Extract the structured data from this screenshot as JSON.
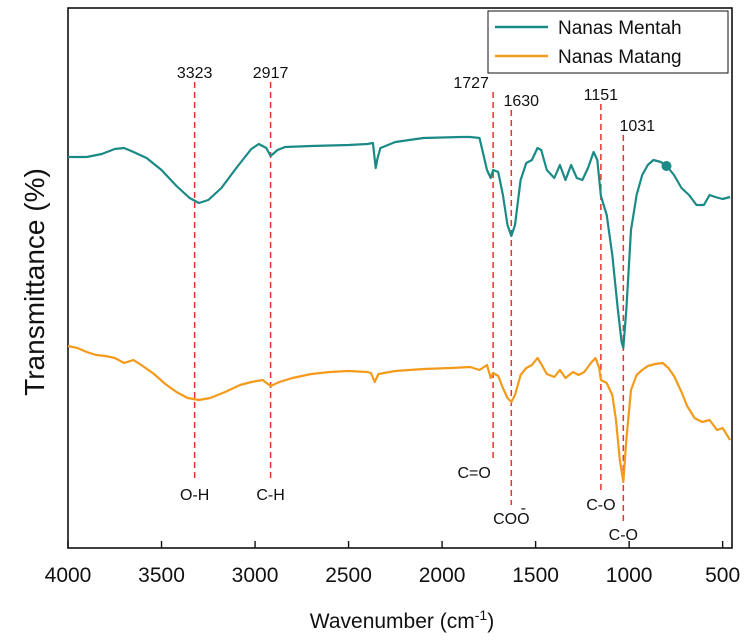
{
  "chart_data": {
    "type": "line",
    "title": "",
    "xlabel": "Wavenumber (cm",
    "xlabel_sup": "-1",
    "xlabel_close": ")",
    "ylabel": "Transmittance (%)",
    "xlim": [
      4000,
      450
    ],
    "x_reversed": true,
    "yticks_shown": false,
    "x_ticks": [
      4000,
      3500,
      3000,
      2500,
      2000,
      1500,
      1000,
      500
    ],
    "x_tick_labels": [
      "4000",
      "3500",
      "3000",
      "2500",
      "2000",
      "1500",
      "1000",
      "500"
    ],
    "grid": false,
    "legend_position": "top-right",
    "series": [
      {
        "name": "Nanas Mentah",
        "color": "#1a8a87",
        "points": [
          [
            4000,
            157
          ],
          [
            3900,
            157
          ],
          [
            3820,
            154
          ],
          [
            3750,
            149
          ],
          [
            3700,
            148
          ],
          [
            3650,
            152
          ],
          [
            3580,
            158
          ],
          [
            3500,
            170
          ],
          [
            3420,
            186
          ],
          [
            3350,
            198
          ],
          [
            3300,
            203
          ],
          [
            3250,
            200
          ],
          [
            3180,
            188
          ],
          [
            3100,
            168
          ],
          [
            3020,
            149
          ],
          [
            2980,
            144
          ],
          [
            2940,
            148
          ],
          [
            2917,
            156
          ],
          [
            2880,
            150
          ],
          [
            2840,
            147
          ],
          [
            2700,
            146
          ],
          [
            2500,
            145
          ],
          [
            2400,
            144
          ],
          [
            2370,
            143
          ],
          [
            2355,
            168
          ],
          [
            2345,
            158
          ],
          [
            2330,
            148
          ],
          [
            2250,
            142
          ],
          [
            2100,
            138
          ],
          [
            1900,
            137
          ],
          [
            1850,
            137
          ],
          [
            1800,
            138
          ],
          [
            1760,
            170
          ],
          [
            1740,
            178
          ],
          [
            1727,
            170
          ],
          [
            1700,
            172
          ],
          [
            1675,
            195
          ],
          [
            1650,
            225
          ],
          [
            1630,
            236
          ],
          [
            1610,
            225
          ],
          [
            1580,
            180
          ],
          [
            1550,
            163
          ],
          [
            1520,
            160
          ],
          [
            1490,
            148
          ],
          [
            1470,
            150
          ],
          [
            1440,
            170
          ],
          [
            1400,
            178
          ],
          [
            1370,
            165
          ],
          [
            1340,
            180
          ],
          [
            1310,
            165
          ],
          [
            1280,
            178
          ],
          [
            1250,
            180
          ],
          [
            1220,
            168
          ],
          [
            1190,
            152
          ],
          [
            1170,
            160
          ],
          [
            1151,
            196
          ],
          [
            1120,
            215
          ],
          [
            1090,
            255
          ],
          [
            1060,
            310
          ],
          [
            1040,
            342
          ],
          [
            1031,
            348
          ],
          [
            1015,
            310
          ],
          [
            990,
            230
          ],
          [
            960,
            195
          ],
          [
            930,
            175
          ],
          [
            900,
            165
          ],
          [
            870,
            160
          ],
          [
            830,
            162
          ],
          [
            790,
            168
          ],
          [
            760,
            175
          ],
          [
            720,
            188
          ],
          [
            680,
            195
          ],
          [
            640,
            205
          ],
          [
            600,
            205
          ],
          [
            570,
            195
          ],
          [
            540,
            197
          ],
          [
            500,
            199
          ],
          [
            460,
            197
          ]
        ]
      },
      {
        "name": "Nanas Matang",
        "color": "#f39a1a",
        "points": [
          [
            4000,
            346
          ],
          [
            3950,
            348
          ],
          [
            3900,
            352
          ],
          [
            3850,
            355
          ],
          [
            3800,
            356
          ],
          [
            3750,
            358
          ],
          [
            3700,
            363
          ],
          [
            3650,
            360
          ],
          [
            3600,
            366
          ],
          [
            3540,
            374
          ],
          [
            3480,
            384
          ],
          [
            3420,
            392
          ],
          [
            3360,
            398
          ],
          [
            3300,
            400
          ],
          [
            3240,
            398
          ],
          [
            3160,
            392
          ],
          [
            3080,
            385
          ],
          [
            3020,
            382
          ],
          [
            2960,
            380
          ],
          [
            2917,
            386
          ],
          [
            2870,
            382
          ],
          [
            2800,
            378
          ],
          [
            2700,
            374
          ],
          [
            2600,
            372
          ],
          [
            2500,
            371
          ],
          [
            2400,
            372
          ],
          [
            2380,
            373
          ],
          [
            2360,
            382
          ],
          [
            2340,
            374
          ],
          [
            2250,
            371
          ],
          [
            2100,
            369
          ],
          [
            1950,
            368
          ],
          [
            1850,
            367
          ],
          [
            1800,
            370
          ],
          [
            1760,
            365
          ],
          [
            1740,
            378
          ],
          [
            1727,
            373
          ],
          [
            1700,
            376
          ],
          [
            1675,
            388
          ],
          [
            1650,
            398
          ],
          [
            1630,
            402
          ],
          [
            1610,
            395
          ],
          [
            1580,
            375
          ],
          [
            1550,
            368
          ],
          [
            1520,
            365
          ],
          [
            1490,
            358
          ],
          [
            1470,
            364
          ],
          [
            1440,
            374
          ],
          [
            1400,
            377
          ],
          [
            1370,
            370
          ],
          [
            1340,
            378
          ],
          [
            1300,
            372
          ],
          [
            1270,
            375
          ],
          [
            1240,
            372
          ],
          [
            1200,
            362
          ],
          [
            1180,
            358
          ],
          [
            1160,
            368
          ],
          [
            1151,
            380
          ],
          [
            1120,
            383
          ],
          [
            1090,
            395
          ],
          [
            1070,
            420
          ],
          [
            1050,
            460
          ],
          [
            1031,
            482
          ],
          [
            1015,
            440
          ],
          [
            990,
            390
          ],
          [
            960,
            375
          ],
          [
            930,
            370
          ],
          [
            900,
            366
          ],
          [
            860,
            364
          ],
          [
            820,
            363
          ],
          [
            790,
            368
          ],
          [
            760,
            376
          ],
          [
            720,
            392
          ],
          [
            690,
            406
          ],
          [
            650,
            418
          ],
          [
            610,
            422
          ],
          [
            570,
            420
          ],
          [
            530,
            430
          ],
          [
            500,
            428
          ],
          [
            460,
            440
          ]
        ]
      }
    ],
    "reference_lines": [
      {
        "x": 3323,
        "peak_label": "3323",
        "group": "O-H"
      },
      {
        "x": 2917,
        "peak_label": "2917",
        "group": "C-H"
      },
      {
        "x": 1727,
        "peak_label": "1727",
        "group": "C=O"
      },
      {
        "x": 1630,
        "peak_label": "1630",
        "group": "COO"
      },
      {
        "x": 1151,
        "peak_label": "1151",
        "group": "C-O"
      },
      {
        "x": 1031,
        "peak_label": "1031",
        "group": "C-O"
      }
    ],
    "coo_superscript": "-",
    "reference_line_color": "#e8342c"
  }
}
